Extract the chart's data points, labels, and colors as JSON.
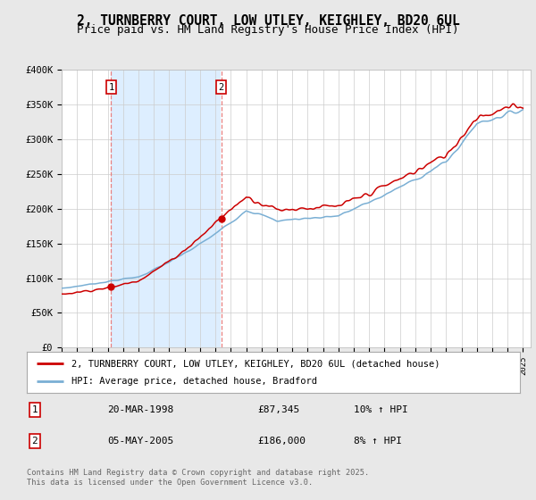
{
  "title": "2, TURNBERRY COURT, LOW UTLEY, KEIGHLEY, BD20 6UL",
  "subtitle": "Price paid vs. HM Land Registry's House Price Index (HPI)",
  "ylim": [
    0,
    400000
  ],
  "yticks": [
    0,
    50000,
    100000,
    150000,
    200000,
    250000,
    300000,
    350000,
    400000
  ],
  "ytick_labels": [
    "£0",
    "£50K",
    "£100K",
    "£150K",
    "£200K",
    "£250K",
    "£300K",
    "£350K",
    "£400K"
  ],
  "sale1_year": 1998.22,
  "sale1_price": 87345,
  "sale2_year": 2005.37,
  "sale2_price": 186000,
  "line_color_property": "#cc0000",
  "line_color_hpi": "#7aafd4",
  "vline_color": "#e88080",
  "shade_color": "#ddeeff",
  "legend_label_property": "2, TURNBERRY COURT, LOW UTLEY, KEIGHLEY, BD20 6UL (detached house)",
  "legend_label_hpi": "HPI: Average price, detached house, Bradford",
  "table_rows": [
    {
      "num": "1",
      "date": "20-MAR-1998",
      "price": "£87,345",
      "hpi": "10% ↑ HPI"
    },
    {
      "num": "2",
      "date": "05-MAY-2005",
      "price": "£186,000",
      "hpi": "8% ↑ HPI"
    }
  ],
  "footnote": "Contains HM Land Registry data © Crown copyright and database right 2025.\nThis data is licensed under the Open Government Licence v3.0.",
  "background_color": "#e8e8e8",
  "plot_background": "#ffffff",
  "grid_color": "#cccccc",
  "title_fontsize": 10.5,
  "subtitle_fontsize": 9,
  "tick_fontsize": 7.5,
  "legend_fontsize": 8
}
